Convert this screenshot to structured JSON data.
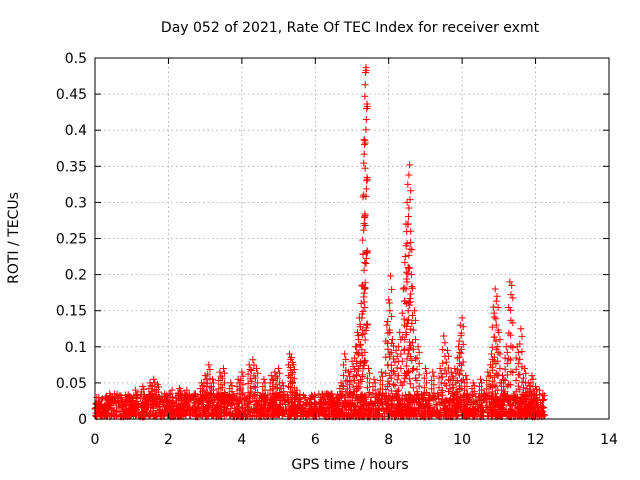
{
  "chart_data": {
    "type": "scatter",
    "title": "Day 052 of 2021, Rate Of TEC Index for receiver exmt",
    "xlabel": "GPS time / hours",
    "ylabel": "ROTI / TECUs",
    "xlim": [
      0,
      14
    ],
    "ylim": [
      0,
      0.5
    ],
    "xticks": [
      0,
      2,
      4,
      6,
      8,
      10,
      12,
      14
    ],
    "yticks": [
      0,
      0.05,
      0.1,
      0.15,
      0.2,
      0.25,
      0.3,
      0.35,
      0.4,
      0.45,
      0.5
    ],
    "grid": true,
    "marker": "+",
    "color": "#ff0000",
    "series": [
      {
        "name": "ROTI",
        "points": [
          [
            0.05,
            0.03
          ],
          [
            0.1,
            0.02
          ],
          [
            0.2,
            0.028
          ],
          [
            0.3,
            0.018
          ],
          [
            0.4,
            0.035
          ],
          [
            0.5,
            0.025
          ],
          [
            0.7,
            0.03
          ],
          [
            0.9,
            0.032
          ],
          [
            1.1,
            0.04
          ],
          [
            1.3,
            0.045
          ],
          [
            1.5,
            0.05
          ],
          [
            1.6,
            0.055
          ],
          [
            1.7,
            0.048
          ],
          [
            1.9,
            0.035
          ],
          [
            2.1,
            0.04
          ],
          [
            2.3,
            0.042
          ],
          [
            2.5,
            0.04
          ],
          [
            2.7,
            0.035
          ],
          [
            2.9,
            0.05
          ],
          [
            3.0,
            0.06
          ],
          [
            3.1,
            0.075
          ],
          [
            3.2,
            0.055
          ],
          [
            3.4,
            0.065
          ],
          [
            3.5,
            0.07
          ],
          [
            3.7,
            0.05
          ],
          [
            3.9,
            0.055
          ],
          [
            4.0,
            0.065
          ],
          [
            4.2,
            0.075
          ],
          [
            4.3,
            0.082
          ],
          [
            4.4,
            0.07
          ],
          [
            4.6,
            0.055
          ],
          [
            4.8,
            0.06
          ],
          [
            4.9,
            0.065
          ],
          [
            5.0,
            0.07
          ],
          [
            5.1,
            0.05
          ],
          [
            5.3,
            0.09
          ],
          [
            5.35,
            0.085
          ],
          [
            5.4,
            0.075
          ],
          [
            5.5,
            0.04
          ],
          [
            5.7,
            0.03
          ],
          [
            5.9,
            0.02
          ],
          [
            6.1,
            0.015
          ],
          [
            6.3,
            0.02
          ],
          [
            6.5,
            0.025
          ],
          [
            6.7,
            0.05
          ],
          [
            6.8,
            0.09
          ],
          [
            6.9,
            0.065
          ],
          [
            7.0,
            0.08
          ],
          [
            7.1,
            0.1
          ],
          [
            7.15,
            0.12
          ],
          [
            7.2,
            0.14
          ],
          [
            7.25,
            0.16
          ],
          [
            7.3,
            0.228
          ],
          [
            7.32,
            0.31
          ],
          [
            7.33,
            0.387
          ],
          [
            7.35,
            0.447
          ],
          [
            7.36,
            0.463
          ],
          [
            7.37,
            0.48
          ],
          [
            7.38,
            0.487
          ],
          [
            7.39,
            0.483
          ],
          [
            7.45,
            0.07
          ],
          [
            7.6,
            0.055
          ],
          [
            7.8,
            0.065
          ],
          [
            7.95,
            0.13
          ],
          [
            8.0,
            0.165
          ],
          [
            8.05,
            0.198
          ],
          [
            8.1,
            0.11
          ],
          [
            8.2,
            0.095
          ],
          [
            8.3,
            0.12
          ],
          [
            8.4,
            0.18
          ],
          [
            8.45,
            0.225
          ],
          [
            8.47,
            0.27
          ],
          [
            8.5,
            0.3
          ],
          [
            8.52,
            0.325
          ],
          [
            8.55,
            0.338
          ],
          [
            8.57,
            0.352
          ],
          [
            8.6,
            0.26
          ],
          [
            8.62,
            0.2
          ],
          [
            8.7,
            0.15
          ],
          [
            8.8,
            0.1
          ],
          [
            9.0,
            0.07
          ],
          [
            9.2,
            0.065
          ],
          [
            9.4,
            0.07
          ],
          [
            9.5,
            0.115
          ],
          [
            9.6,
            0.095
          ],
          [
            9.7,
            0.065
          ],
          [
            9.8,
            0.07
          ],
          [
            9.9,
            0.1
          ],
          [
            9.95,
            0.13
          ],
          [
            10.0,
            0.14
          ],
          [
            10.1,
            0.06
          ],
          [
            10.3,
            0.05
          ],
          [
            10.5,
            0.055
          ],
          [
            10.7,
            0.065
          ],
          [
            10.8,
            0.09
          ],
          [
            10.85,
            0.155
          ],
          [
            10.9,
            0.18
          ],
          [
            10.95,
            0.17
          ],
          [
            11.0,
            0.12
          ],
          [
            11.1,
            0.06
          ],
          [
            11.2,
            0.1
          ],
          [
            11.3,
            0.19
          ],
          [
            11.35,
            0.185
          ],
          [
            11.5,
            0.1
          ],
          [
            11.6,
            0.125
          ],
          [
            11.7,
            0.07
          ],
          [
            11.8,
            0.05
          ],
          [
            11.9,
            0.06
          ],
          [
            12.0,
            0.045
          ],
          [
            12.1,
            0.04
          ],
          [
            12.2,
            0.035
          ]
        ],
        "baseline_band": {
          "x_range": [
            0,
            12.25
          ],
          "y_range": [
            0.003,
            0.035
          ]
        }
      }
    ]
  }
}
